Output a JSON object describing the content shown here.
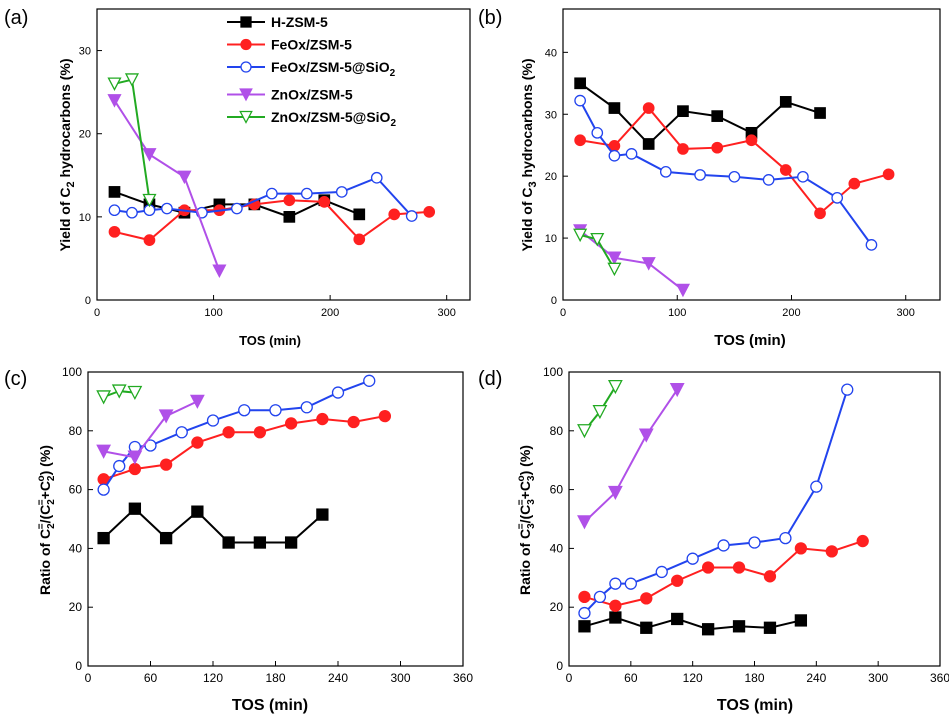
{
  "series_styles": [
    {
      "name": "H-ZSM-5",
      "color": "#000000",
      "marker": "square",
      "fill": "filled"
    },
    {
      "name": "FeOx/ZSM-5",
      "color": "#ff2020",
      "marker": "circle",
      "fill": "filled"
    },
    {
      "name": "FeOx/ZSM-5@SiO2",
      "color": "#2244ee",
      "marker": "circle",
      "fill": "open"
    },
    {
      "name": "ZnOx/ZSM-5",
      "color": "#b050e8",
      "marker": "triangle-down",
      "fill": "filled"
    },
    {
      "name": "ZnOx/ZSM-5@SiO2",
      "color": "#22aa22",
      "marker": "triangle-down",
      "fill": "open"
    }
  ],
  "legend": {
    "entries": [
      {
        "base": "H-ZSM-5",
        "sub": ""
      },
      {
        "base": "FeOx/ZSM-5",
        "sub": ""
      },
      {
        "base": "FeOx/ZSM-5@SiO",
        "sub": "2"
      },
      {
        "base": "ZnOx/ZSM-5",
        "sub": ""
      },
      {
        "base": "ZnOx/ZSM-5@SiO",
        "sub": "2"
      }
    ]
  },
  "panels": {
    "a": {
      "label": "(a)",
      "xlabel": "TOS (min)",
      "ylabel_pre": "Yield of C",
      "ylabel_sub": "2",
      "ylabel_post": " hydrocarbons (%)"
    },
    "b": {
      "label": "(b)",
      "xlabel": "TOS (min)",
      "ylabel_pre": "Yield of C",
      "ylabel_sub": "3",
      "ylabel_post": " hydrocarbons (%)"
    },
    "c": {
      "label": "(c)",
      "xlabel": "TOS  (min)",
      "ylabel": "Ratio of C2=/(C2=+C2o) (%)",
      "ylabel_text": "Ratio of C",
      "ylabel_tail": " (%)",
      "ylabel_species": "2"
    },
    "d": {
      "label": "(d)",
      "xlabel": "TOS  (min)",
      "ylabel": "Ratio of C3=/(C3=+C3o) (%)",
      "ylabel_text": "Ratio of C",
      "ylabel_tail": " (%)",
      "ylabel_species": "3"
    }
  },
  "chart_data": [
    {
      "panel": "a",
      "type": "line",
      "xlabel": "TOS (min)",
      "ylabel": "Yield of C2 hydrocarbons (%)",
      "xlim": [
        0,
        320
      ],
      "ylim": [
        0,
        35
      ],
      "xticks": [
        0,
        100,
        200,
        300
      ],
      "yticks": [
        0,
        10,
        20,
        30
      ],
      "series": [
        {
          "name": "H-ZSM-5",
          "x": [
            15,
            45,
            75,
            105,
            135,
            165,
            195,
            225
          ],
          "y": [
            13.0,
            11.5,
            10.5,
            11.5,
            11.5,
            10.0,
            12.0,
            10.3
          ]
        },
        {
          "name": "FeOx/ZSM-5",
          "x": [
            15,
            45,
            75,
            105,
            135,
            165,
            195,
            225,
            255,
            285
          ],
          "y": [
            8.2,
            7.2,
            10.8,
            10.8,
            11.5,
            12.0,
            11.8,
            7.3,
            10.3,
            10.6
          ]
        },
        {
          "name": "FeOx/ZSM-5@SiO2",
          "x": [
            15,
            30,
            45,
            60,
            90,
            120,
            150,
            180,
            210,
            240,
            270
          ],
          "y": [
            10.8,
            10.5,
            10.8,
            11.0,
            10.5,
            11.0,
            12.8,
            12.8,
            13.0,
            14.7,
            10.1
          ]
        },
        {
          "name": "ZnOx/ZSM-5",
          "x": [
            15,
            45,
            75,
            105
          ],
          "y": [
            24.0,
            17.5,
            14.8,
            3.5
          ]
        },
        {
          "name": "ZnOx/ZSM-5@SiO2",
          "x": [
            15,
            30,
            45
          ],
          "y": [
            26.0,
            26.5,
            12.0
          ]
        }
      ]
    },
    {
      "panel": "b",
      "type": "line",
      "xlabel": "TOS (min)",
      "ylabel": "Yield of C3 hydrocarbons (%)",
      "xlim": [
        0,
        330
      ],
      "ylim": [
        0,
        47
      ],
      "xticks": [
        0,
        100,
        200,
        300
      ],
      "yticks": [
        0,
        10,
        20,
        30,
        40
      ],
      "series": [
        {
          "name": "H-ZSM-5",
          "x": [
            15,
            45,
            75,
            105,
            135,
            165,
            195,
            225
          ],
          "y": [
            35.0,
            31.0,
            25.2,
            30.5,
            29.7,
            27.0,
            32.0,
            30.2
          ]
        },
        {
          "name": "FeOx/ZSM-5",
          "x": [
            15,
            45,
            75,
            105,
            135,
            165,
            195,
            225,
            255,
            285
          ],
          "y": [
            25.8,
            24.9,
            31.0,
            24.4,
            24.6,
            25.8,
            21.0,
            14.0,
            18.8,
            20.3
          ]
        },
        {
          "name": "FeOx/ZSM-5@SiO2",
          "x": [
            15,
            30,
            45,
            60,
            90,
            120,
            150,
            180,
            210,
            240,
            270
          ],
          "y": [
            32.2,
            27.0,
            23.3,
            23.6,
            20.7,
            20.2,
            19.9,
            19.4,
            19.9,
            16.5,
            8.9
          ]
        },
        {
          "name": "ZnOx/ZSM-5",
          "x": [
            15,
            45,
            75,
            105
          ],
          "y": [
            11.2,
            6.8,
            5.9,
            1.6
          ]
        },
        {
          "name": "ZnOx/ZSM-5@SiO2",
          "x": [
            15,
            30,
            45
          ],
          "y": [
            10.5,
            9.8,
            5.0
          ]
        }
      ]
    },
    {
      "panel": "c",
      "type": "line",
      "xlabel": "TOS  (min)",
      "ylabel": "Ratio of C2=/(C2=+C2o) (%)",
      "xlim": [
        0,
        360
      ],
      "ylim": [
        0,
        100
      ],
      "xticks": [
        0,
        60,
        120,
        180,
        240,
        300,
        360
      ],
      "yticks": [
        0,
        20,
        40,
        60,
        80,
        100
      ],
      "series": [
        {
          "name": "H-ZSM-5",
          "x": [
            15,
            45,
            75,
            105,
            135,
            165,
            195,
            225
          ],
          "y": [
            43.5,
            53.5,
            43.5,
            52.5,
            42.0,
            42.0,
            42.0,
            51.5
          ]
        },
        {
          "name": "FeOx/ZSM-5",
          "x": [
            15,
            45,
            75,
            105,
            135,
            165,
            195,
            225,
            255,
            285
          ],
          "y": [
            63.5,
            67.0,
            68.5,
            76.0,
            79.5,
            79.5,
            82.5,
            84.0,
            83.0,
            85.0
          ]
        },
        {
          "name": "FeOx/ZSM-5@SiO2",
          "x": [
            15,
            30,
            45,
            60,
            90,
            120,
            150,
            180,
            210,
            240,
            270
          ],
          "y": [
            60.0,
            68.0,
            74.5,
            75.0,
            79.5,
            83.5,
            87.0,
            87.0,
            88.0,
            93.0,
            97.0
          ]
        },
        {
          "name": "ZnOx/ZSM-5",
          "x": [
            15,
            45,
            75,
            105
          ],
          "y": [
            73.0,
            71.0,
            85.0,
            90.0
          ]
        },
        {
          "name": "ZnOx/ZSM-5@SiO2",
          "x": [
            15,
            30,
            45
          ],
          "y": [
            91.5,
            93.5,
            93.0
          ]
        }
      ]
    },
    {
      "panel": "d",
      "type": "line",
      "xlabel": "TOS  (min)",
      "ylabel": "Ratio of C3=/(C3=+C3o) (%)",
      "xlim": [
        0,
        360
      ],
      "ylim": [
        0,
        100
      ],
      "xticks": [
        0,
        60,
        120,
        180,
        240,
        300,
        360
      ],
      "yticks": [
        0,
        20,
        40,
        60,
        80,
        100
      ],
      "series": [
        {
          "name": "H-ZSM-5",
          "x": [
            15,
            45,
            75,
            105,
            135,
            165,
            195,
            225
          ],
          "y": [
            13.5,
            16.5,
            13.0,
            16.0,
            12.5,
            13.5,
            13.0,
            15.5
          ]
        },
        {
          "name": "FeOx/ZSM-5",
          "x": [
            15,
            45,
            75,
            105,
            135,
            165,
            195,
            225,
            255,
            285
          ],
          "y": [
            23.5,
            20.5,
            23.0,
            29.0,
            33.5,
            33.5,
            30.5,
            40.0,
            39.0,
            42.5
          ]
        },
        {
          "name": "FeOx/ZSM-5@SiO2",
          "x": [
            15,
            30,
            45,
            60,
            90,
            120,
            150,
            180,
            210,
            240,
            270
          ],
          "y": [
            18.0,
            23.5,
            28.0,
            28.0,
            32.0,
            36.5,
            41.0,
            42.0,
            43.5,
            61.0,
            94.0
          ]
        },
        {
          "name": "ZnOx/ZSM-5",
          "x": [
            15,
            45,
            75,
            105
          ],
          "y": [
            49.0,
            59.0,
            78.5,
            94.0
          ]
        },
        {
          "name": "ZnOx/ZSM-5@SiO2",
          "x": [
            15,
            30,
            45
          ],
          "y": [
            80.0,
            86.5,
            95.0
          ]
        }
      ]
    }
  ]
}
